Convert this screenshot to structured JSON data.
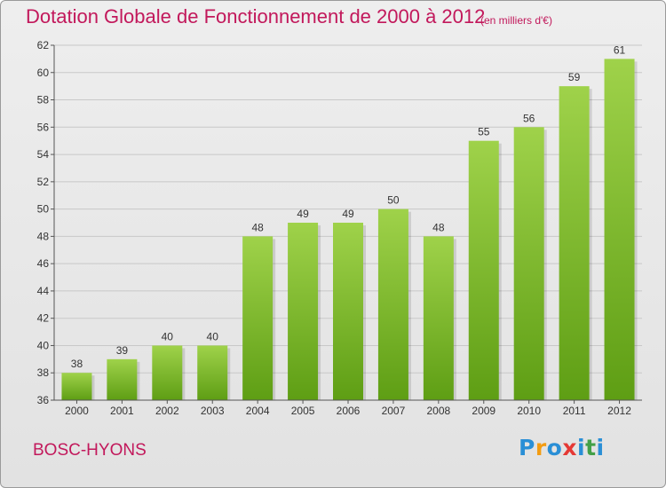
{
  "title": "Dotation Globale de Fonctionnement de 2000 à 2012",
  "subtitle": "(en milliers d'€)",
  "commune": "BOSC-HYONS",
  "logo": {
    "letters": [
      "P",
      "r",
      "o",
      "x",
      "i",
      "t",
      "i"
    ],
    "colors": [
      "#2a8fd6",
      "#f39c12",
      "#2a8fd6",
      "#e53935",
      "#2a8fd6",
      "#43a047",
      "#2a8fd6"
    ]
  },
  "colors": {
    "accent": "#c2185b",
    "bar_top": "#9fd24a",
    "bar_bottom": "#5e9e14",
    "grid": "#c8c8c8"
  },
  "chart_data": {
    "type": "bar",
    "categories": [
      "2000",
      "2001",
      "2002",
      "2003",
      "2004",
      "2005",
      "2006",
      "2007",
      "2008",
      "2009",
      "2010",
      "2011",
      "2012"
    ],
    "values": [
      38,
      39,
      40,
      40,
      48,
      49,
      49,
      50,
      48,
      55,
      56,
      59,
      61
    ],
    "y_ticks": [
      36,
      38,
      40,
      42,
      44,
      46,
      48,
      50,
      52,
      54,
      56,
      58,
      60,
      62
    ],
    "ylim": [
      36,
      62
    ],
    "grid": true,
    "data_labels": true
  }
}
